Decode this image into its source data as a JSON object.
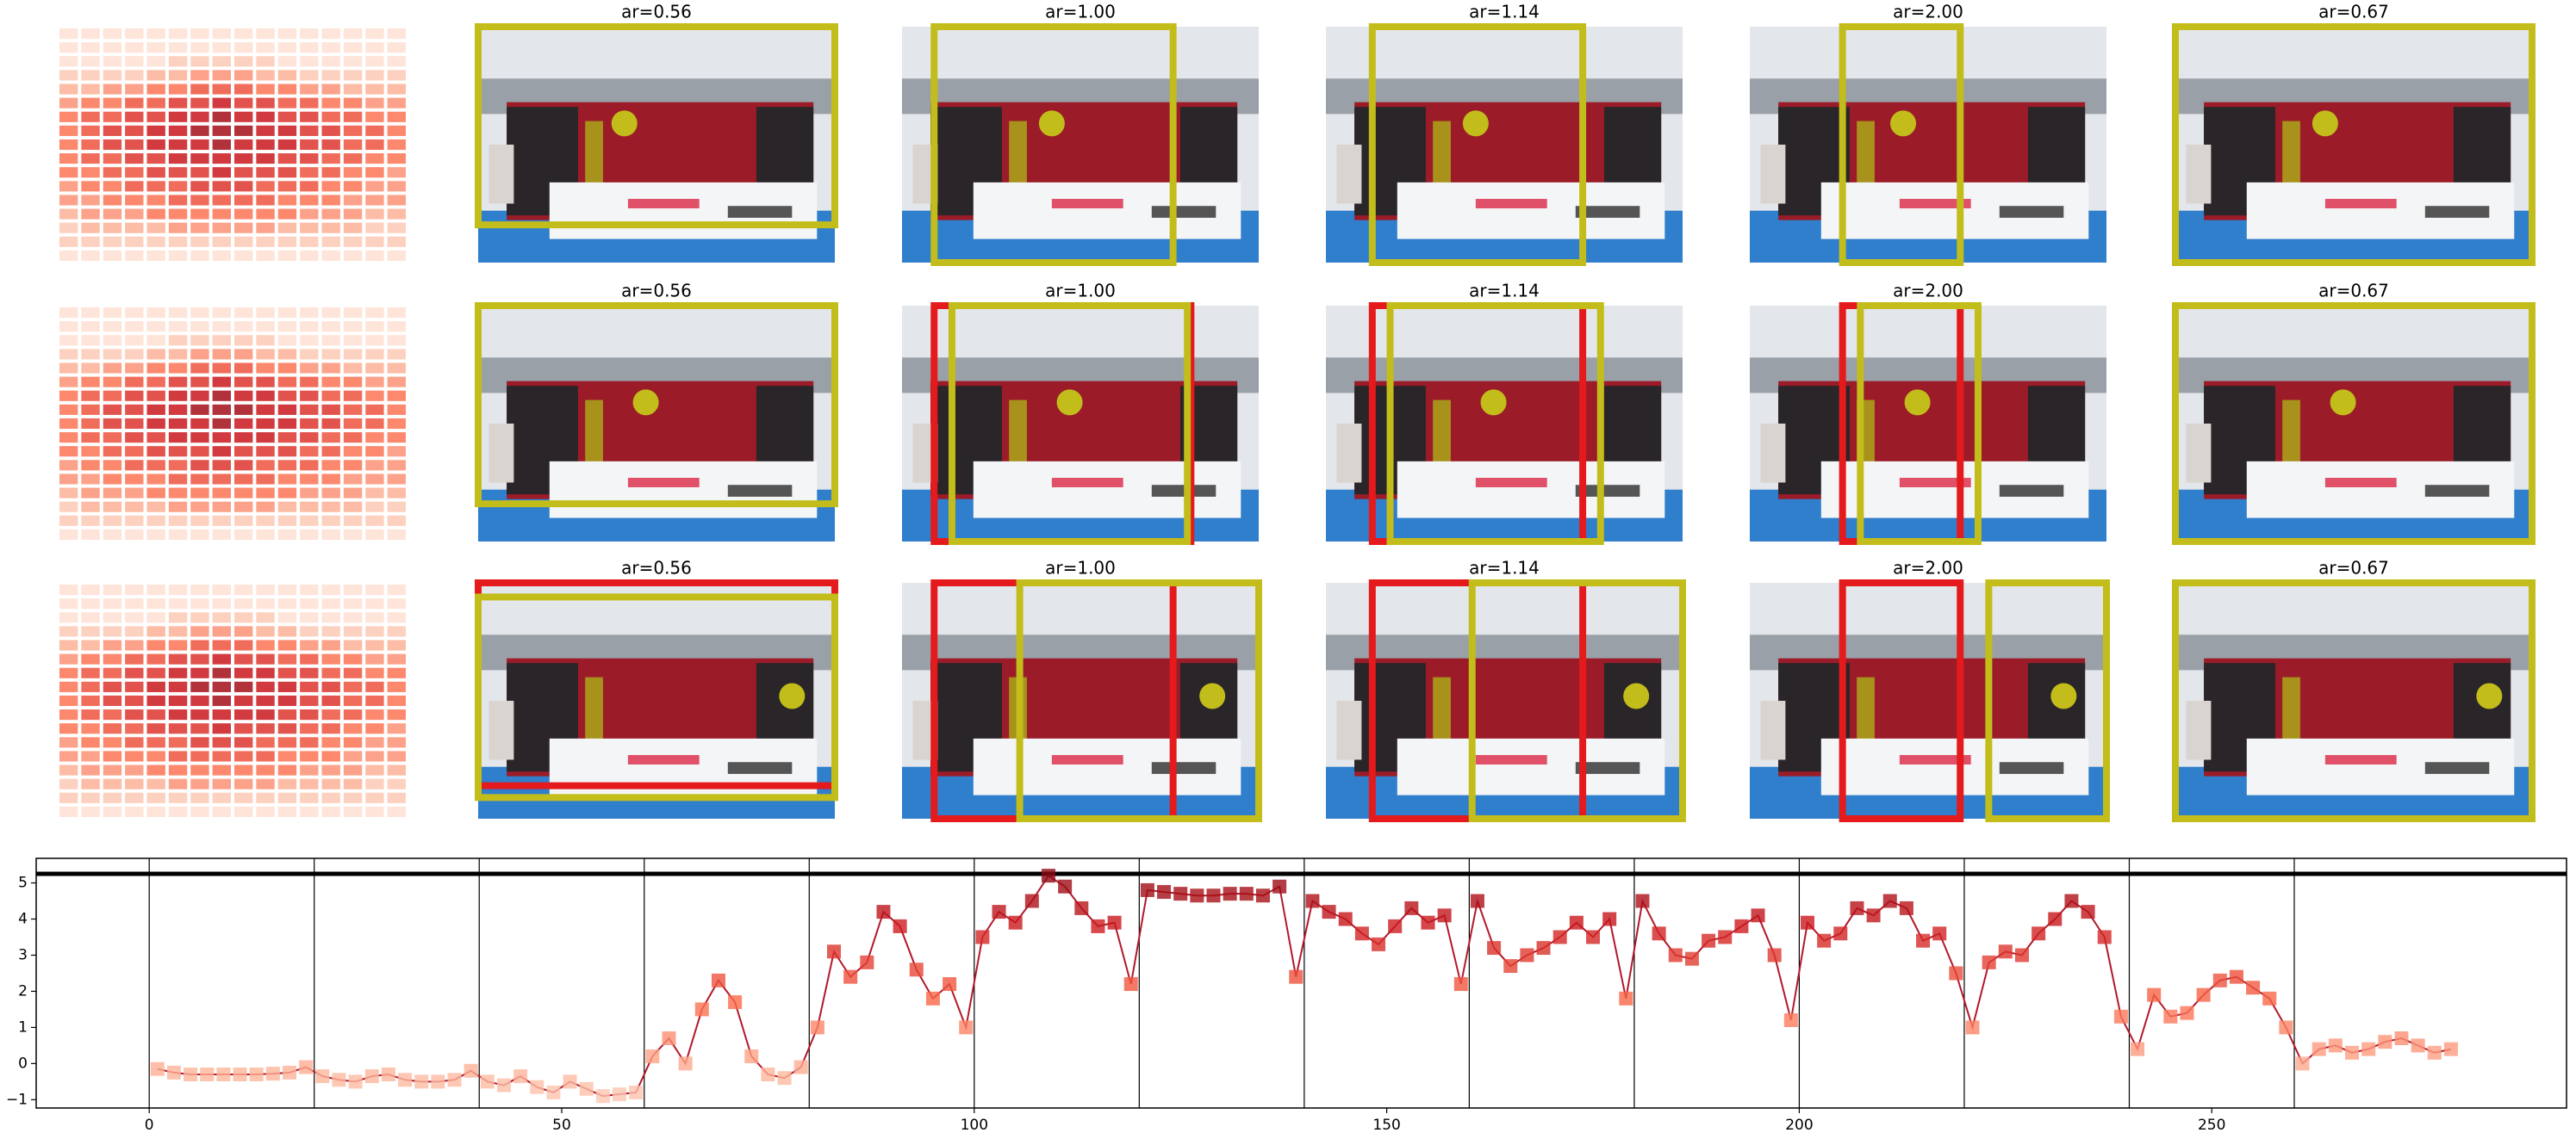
{
  "panels": [
    {
      "titles": [
        "ar=0.56",
        "ar=1.00",
        "ar=1.14",
        "ar=2.00",
        "ar=0.67"
      ]
    },
    {
      "titles": [
        "ar=0.56",
        "ar=1.00",
        "ar=1.14",
        "ar=2.00",
        "ar=0.67"
      ]
    },
    {
      "titles": [
        "ar=0.56",
        "ar=1.00",
        "ar=1.14",
        "ar=2.00",
        "ar=0.67"
      ]
    }
  ],
  "heatmap": {
    "type": "heatmap",
    "colormap": "Reds",
    "values": [
      [
        1,
        1,
        1,
        1,
        1,
        1,
        1,
        1,
        1,
        1,
        1,
        1,
        1,
        1,
        1,
        1
      ],
      [
        1,
        1,
        1,
        1,
        1,
        1,
        1,
        1,
        1,
        1,
        1,
        1,
        1,
        1,
        1,
        1
      ],
      [
        1,
        1,
        1,
        1,
        1,
        2,
        2,
        2,
        2,
        2,
        1,
        1,
        1,
        1,
        1,
        1
      ],
      [
        2,
        2,
        2,
        2,
        3,
        3,
        4,
        4,
        4,
        3,
        3,
        2,
        2,
        2,
        2,
        2
      ],
      [
        3,
        3,
        4,
        4,
        5,
        5,
        6,
        6,
        6,
        5,
        5,
        4,
        4,
        3,
        3,
        3
      ],
      [
        4,
        5,
        5,
        6,
        6,
        7,
        7,
        8,
        7,
        7,
        6,
        6,
        5,
        5,
        4,
        4
      ],
      [
        5,
        6,
        6,
        7,
        7,
        8,
        8,
        9,
        8,
        8,
        7,
        7,
        6,
        6,
        5,
        5
      ],
      [
        5,
        6,
        7,
        7,
        8,
        8,
        9,
        9,
        9,
        8,
        8,
        7,
        7,
        6,
        6,
        5
      ],
      [
        5,
        6,
        7,
        7,
        8,
        8,
        8,
        9,
        8,
        8,
        8,
        7,
        7,
        6,
        6,
        5
      ],
      [
        5,
        6,
        6,
        7,
        7,
        8,
        8,
        8,
        8,
        8,
        7,
        7,
        6,
        6,
        5,
        5
      ],
      [
        5,
        5,
        6,
        6,
        7,
        7,
        7,
        8,
        7,
        7,
        7,
        6,
        6,
        5,
        5,
        4
      ],
      [
        4,
        5,
        5,
        6,
        6,
        6,
        7,
        7,
        7,
        6,
        6,
        6,
        5,
        5,
        4,
        4
      ],
      [
        4,
        4,
        5,
        5,
        5,
        6,
        6,
        6,
        6,
        6,
        5,
        5,
        5,
        4,
        4,
        4
      ],
      [
        3,
        4,
        4,
        4,
        5,
        5,
        5,
        5,
        5,
        5,
        5,
        4,
        4,
        4,
        3,
        3
      ],
      [
        2,
        3,
        3,
        3,
        3,
        4,
        4,
        4,
        4,
        4,
        3,
        3,
        3,
        3,
        2,
        2
      ],
      [
        2,
        2,
        2,
        2,
        2,
        2,
        2,
        2,
        2,
        2,
        2,
        2,
        2,
        2,
        2,
        2
      ],
      [
        1,
        1,
        1,
        1,
        1,
        1,
        1,
        1,
        1,
        1,
        1,
        1,
        1,
        1,
        1,
        1
      ]
    ]
  },
  "chart_data": {
    "type": "line",
    "color": "#b2182b",
    "colormap": "Reds",
    "x": [
      1,
      3,
      5,
      7,
      9,
      11,
      13,
      15,
      17,
      19,
      21,
      23,
      25,
      27,
      29,
      31,
      33,
      35,
      37,
      39,
      41,
      43,
      45,
      47,
      49,
      51,
      53,
      55,
      57,
      59,
      61,
      63,
      65,
      67,
      69,
      71,
      73,
      75,
      77,
      79,
      81,
      83,
      85,
      87,
      89,
      91,
      93,
      95,
      97,
      99,
      101,
      103,
      105,
      107,
      109,
      111,
      113,
      115,
      117,
      119,
      121,
      123,
      125,
      127,
      129,
      131,
      133,
      135,
      137,
      139,
      141,
      143,
      145,
      147,
      149,
      151,
      153,
      155,
      157,
      159,
      161,
      163,
      165,
      167,
      169,
      171,
      173,
      175,
      177,
      179,
      181,
      183,
      185,
      187,
      189,
      191,
      193,
      195,
      197,
      199,
      201,
      203,
      205,
      207,
      209,
      211,
      213,
      215,
      217,
      219,
      221,
      223,
      225,
      227,
      229,
      231,
      233,
      235,
      237,
      239,
      241,
      243,
      245,
      247,
      249,
      251,
      253,
      255,
      257,
      259,
      261,
      263,
      265,
      267,
      269,
      271,
      273,
      275,
      277,
      279
    ],
    "values": [
      -0.15,
      -0.25,
      -0.3,
      -0.3,
      -0.3,
      -0.3,
      -0.3,
      -0.28,
      -0.25,
      -0.1,
      -0.35,
      -0.45,
      -0.5,
      -0.35,
      -0.3,
      -0.45,
      -0.5,
      -0.5,
      -0.45,
      -0.2,
      -0.5,
      -0.6,
      -0.35,
      -0.65,
      -0.8,
      -0.5,
      -0.7,
      -0.9,
      -0.85,
      -0.8,
      0.2,
      0.7,
      0.0,
      1.5,
      2.3,
      1.7,
      0.2,
      -0.3,
      -0.4,
      -0.1,
      1.0,
      3.1,
      2.4,
      2.8,
      4.2,
      3.8,
      2.6,
      1.8,
      2.2,
      1.0,
      3.5,
      4.2,
      3.9,
      4.5,
      5.2,
      4.9,
      4.3,
      3.8,
      3.9,
      2.2,
      4.8,
      4.75,
      4.7,
      4.65,
      4.65,
      4.7,
      4.7,
      4.65,
      4.9,
      2.4,
      4.5,
      4.2,
      4.0,
      3.6,
      3.3,
      3.8,
      4.3,
      3.9,
      4.1,
      2.2,
      4.5,
      3.2,
      2.7,
      3.0,
      3.2,
      3.5,
      3.9,
      3.5,
      4.0,
      1.8,
      4.5,
      3.6,
      3.0,
      2.9,
      3.4,
      3.5,
      3.8,
      4.1,
      3.0,
      1.2,
      3.9,
      3.4,
      3.6,
      4.3,
      4.1,
      4.5,
      4.3,
      3.4,
      3.6,
      2.5,
      1.0,
      2.8,
      3.1,
      3.0,
      3.6,
      4.0,
      4.5,
      4.2,
      3.5,
      1.3,
      0.4,
      1.9,
      1.3,
      1.4,
      1.9,
      2.3,
      2.4,
      2.1,
      1.8,
      1.0,
      0.0,
      0.4,
      0.5,
      0.3,
      0.4,
      0.6,
      0.7,
      0.5,
      0.3,
      0.4
    ],
    "xlim": [
      -13.7,
      293
    ],
    "ylim": [
      -1.23,
      5.68
    ],
    "xticks": [
      0,
      50,
      100,
      150,
      200,
      250
    ],
    "yticks": [
      {
        "value": -1,
        "label": "−1"
      },
      0,
      1,
      2,
      3,
      4,
      5
    ],
    "vlines": [
      0,
      20,
      40,
      60,
      80,
      100,
      120,
      140,
      160,
      180,
      200,
      220,
      240,
      260
    ],
    "hline": 5.25
  }
}
